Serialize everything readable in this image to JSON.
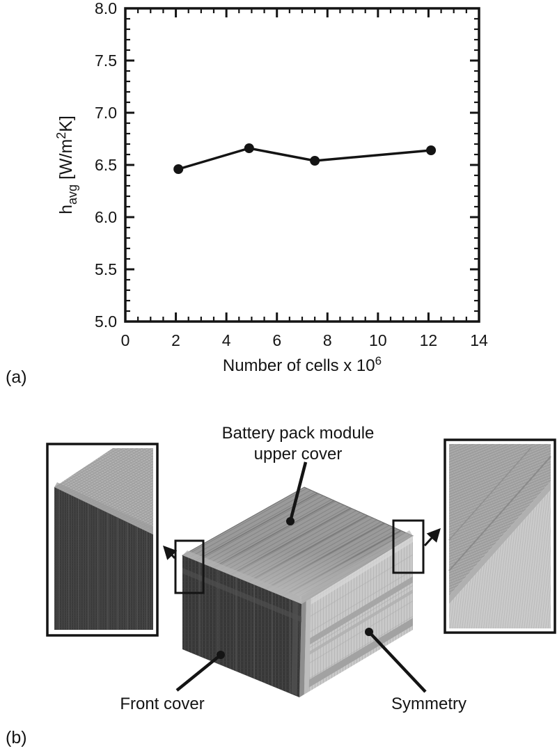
{
  "panel_a": {
    "label": "(a)"
  },
  "panel_b": {
    "label": "(b)",
    "annotations": {
      "upper_cover_line1": "Battery pack module",
      "upper_cover_line2": "upper cover",
      "front_cover": "Front cover",
      "symmetry": "Symmetry"
    }
  },
  "chart_data": {
    "type": "line",
    "title": "",
    "xlabel": "Number of cells x 10^6",
    "ylabel": "h_avg [W/m^2K]",
    "xlabel_parts": {
      "main": "Number of cells  x 10",
      "sup": "6"
    },
    "ylabel_parts": {
      "base": "h",
      "sub": "avg",
      "mid": " [W/m",
      "sup": "2",
      "end": "K]"
    },
    "xlim": [
      0,
      14
    ],
    "ylim": [
      5.0,
      8.0
    ],
    "x_major_ticks": [
      0,
      2,
      4,
      6,
      8,
      10,
      12,
      14
    ],
    "x_tick_labels": [
      "0",
      "2",
      "4",
      "6",
      "8",
      "10",
      "12",
      "14"
    ],
    "x_minor_step": 0.5,
    "y_major_ticks": [
      5.0,
      5.5,
      6.0,
      6.5,
      7.0,
      7.5,
      8.0
    ],
    "y_tick_labels": [
      "5.0",
      "5.5",
      "6.0",
      "6.5",
      "7.0",
      "7.5",
      "8.0"
    ],
    "y_minor_step": 0.1,
    "grid": false,
    "legend": "none",
    "series": [
      {
        "name": "h_avg",
        "x": [
          2.1,
          4.9,
          7.5,
          12.1
        ],
        "y": [
          6.46,
          6.66,
          6.54,
          6.64
        ]
      }
    ],
    "line_color": "#141414",
    "marker": "circle"
  },
  "colors": {
    "ink": "#141414",
    "top_face": "#9a9a9a",
    "front_face": "#383838",
    "side_face": "#c9c9c9"
  }
}
